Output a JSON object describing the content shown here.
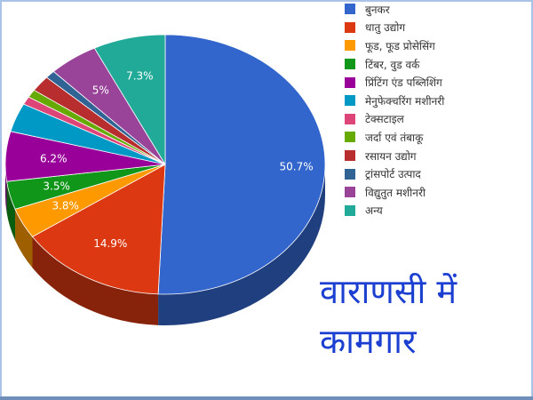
{
  "chart_data": {
    "type": "pie",
    "title": "वाराणसी में कामगार",
    "slices": [
      {
        "label": "बुनकर",
        "value": 50.7,
        "color": "#3366cc",
        "value_label": "50.7%"
      },
      {
        "label": "धातु उद्योग",
        "value": 14.9,
        "color": "#dc3912",
        "value_label": "14.9%"
      },
      {
        "label": "फूड, फूड प्रोसेसिंग",
        "value": 3.8,
        "color": "#ff9900",
        "value_label": "3.8%"
      },
      {
        "label": "टिंबर, वुड वर्क",
        "value": 3.5,
        "color": "#109618",
        "value_label": "3.5%"
      },
      {
        "label": "प्रिंटिंग एंड पब्लिशिंग",
        "value": 6.2,
        "color": "#990099",
        "value_label": "6.2%"
      },
      {
        "label": "मेनुफेक्चरिंग मशीनरी",
        "value": 3.6,
        "color": "#0099c6",
        "value_label": ""
      },
      {
        "label": "टेक्सटाइल",
        "value": 1.0,
        "color": "#dd4477",
        "value_label": ""
      },
      {
        "label": "जर्दा एवं तंबाकू",
        "value": 1.0,
        "color": "#66aa00",
        "value_label": ""
      },
      {
        "label": "रसायन उद्योग",
        "value": 2.0,
        "color": "#b82e2e",
        "value_label": ""
      },
      {
        "label": "ट्रांसपोर्ट उत्पाद",
        "value": 1.0,
        "color": "#316395",
        "value_label": ""
      },
      {
        "label": "विद्युतुत मशीनरी",
        "value": 5.0,
        "color": "#994499",
        "value_label": "5%"
      },
      {
        "label": "अन्य",
        "value": 7.3,
        "color": "#22aa99",
        "value_label": "7.3%"
      }
    ],
    "legend_position": "right"
  },
  "caption": {
    "line1": "वाराणसी में",
    "line2": "कामगार"
  }
}
